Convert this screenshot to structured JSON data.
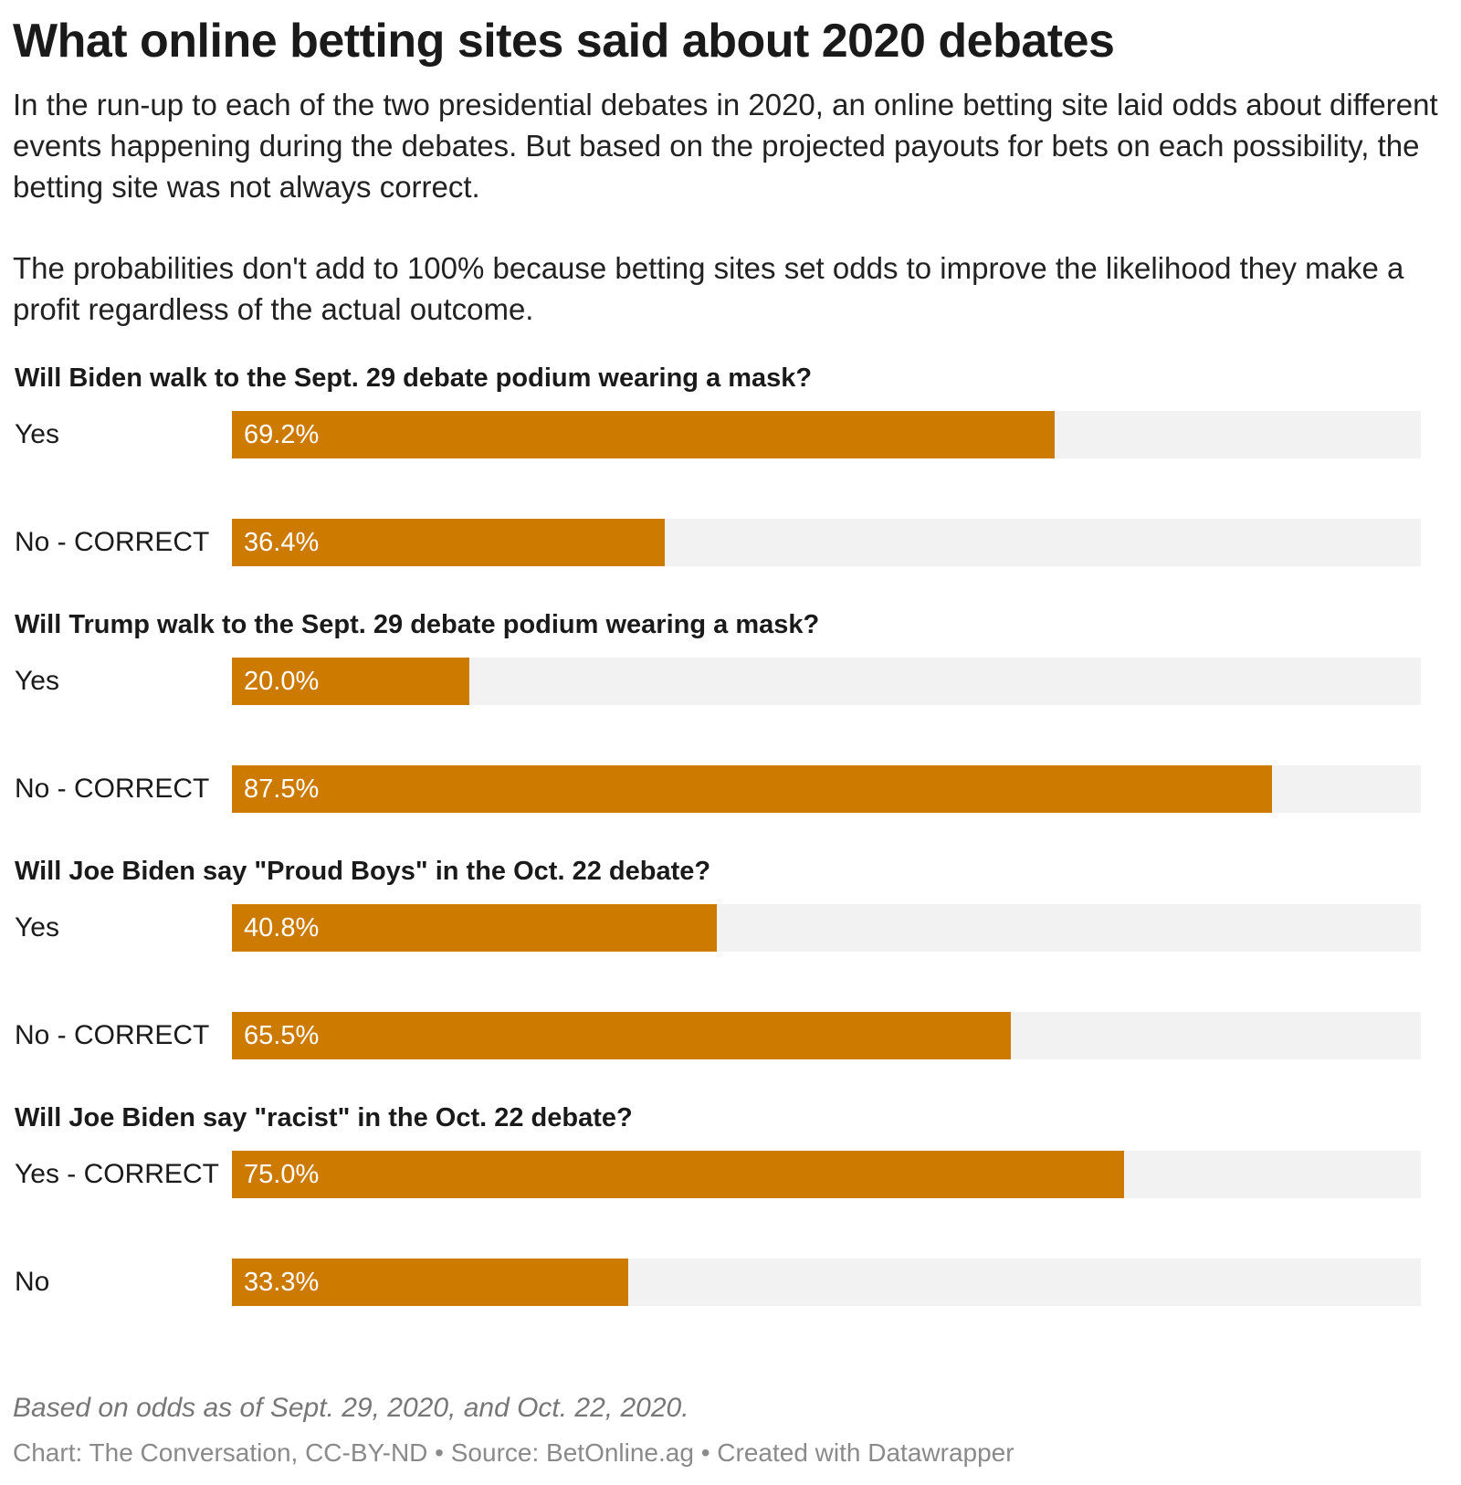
{
  "header": {
    "title": "What online betting sites said about 2020 debates",
    "description": [
      "In the run-up to each of the two presidential debates in 2020, an online betting site laid odds about different events happening during the debates. But based on the projected payouts for bets on each possibility, the betting site was not always correct.",
      "The probabilities don't add to 100% because betting sites set odds to improve the likelihood they make a profit regardless of the actual outcome."
    ]
  },
  "footer": {
    "note": "Based on odds as of Sept. 29, 2020, and Oct. 22, 2020.",
    "credit": "Chart: The Conversation, CC-BY-ND • Source: BetOnline.ag • Created with Datawrapper"
  },
  "colors": {
    "bar": "#cc7a00",
    "track": "#f2f2f2"
  },
  "chart_data": {
    "type": "bar",
    "orientation": "horizontal",
    "title": "What online betting sites said about 2020 debates",
    "xlim": [
      0,
      100
    ],
    "unit": "%",
    "grid": false,
    "groups": [
      {
        "question": "Will Biden walk to the Sept. 29 debate podium wearing a mask?",
        "bars": [
          {
            "label": "Yes",
            "value": 69.2,
            "value_label": "69.2%"
          },
          {
            "label": "No - CORRECT",
            "value": 36.4,
            "value_label": "36.4%"
          }
        ]
      },
      {
        "question": "Will Trump walk to the Sept. 29 debate podium wearing a mask?",
        "bars": [
          {
            "label": "Yes",
            "value": 20.0,
            "value_label": "20.0%"
          },
          {
            "label": "No - CORRECT",
            "value": 87.5,
            "value_label": "87.5%"
          }
        ]
      },
      {
        "question": "Will Joe Biden say \"Proud Boys\" in the Oct. 22 debate?",
        "bars": [
          {
            "label": "Yes",
            "value": 40.8,
            "value_label": "40.8%"
          },
          {
            "label": "No - CORRECT",
            "value": 65.5,
            "value_label": "65.5%"
          }
        ]
      },
      {
        "question": "Will Joe Biden say \"racist\" in the Oct. 22 debate?",
        "bars": [
          {
            "label": "Yes - CORRECT",
            "value": 75.0,
            "value_label": "75.0%"
          },
          {
            "label": "No",
            "value": 33.3,
            "value_label": "33.3%"
          }
        ]
      }
    ]
  }
}
